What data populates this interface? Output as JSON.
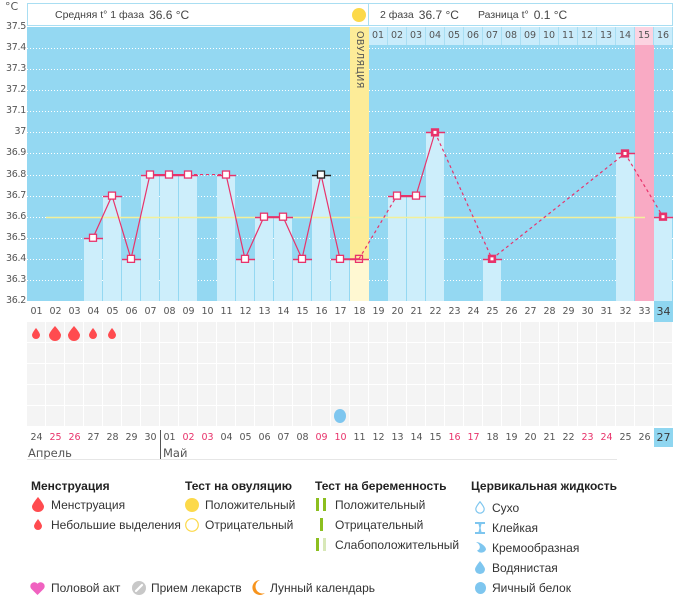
{
  "header": {
    "unit": "°C",
    "phase1_label": "Средняя t° 1 фаза",
    "phase1_value": "36.6 °C",
    "phase2_label": "2 фаза",
    "phase2_value": "36.7 °C",
    "diff_label": "Разница t°",
    "diff_value": "0.1 °C"
  },
  "chart_data": {
    "type": "line",
    "title": "",
    "xlabel": "",
    "ylabel": "°C",
    "ylim": [
      36.2,
      37.5
    ],
    "yticks": [
      "37.5",
      "37.4",
      "37.3",
      "37.2",
      "37.1",
      "37",
      "36.9",
      "36.8",
      "36.7",
      "36.6",
      "36.5",
      "36.4",
      "36.3",
      "36.2"
    ],
    "grid": true,
    "days": [
      "01",
      "02",
      "03",
      "04",
      "05",
      "06",
      "07",
      "08",
      "09",
      "10",
      "11",
      "12",
      "13",
      "14",
      "15",
      "16",
      "17",
      "18",
      "19",
      "20",
      "21",
      "22",
      "23",
      "24",
      "25",
      "26",
      "27",
      "28",
      "29",
      "30",
      "31",
      "32",
      "33",
      "34"
    ],
    "temperatures": [
      null,
      null,
      null,
      36.5,
      36.7,
      36.4,
      36.8,
      36.8,
      36.8,
      null,
      36.8,
      36.4,
      36.6,
      36.6,
      36.4,
      36.8,
      36.4,
      36.4,
      null,
      36.7,
      36.7,
      37.0,
      null,
      null,
      36.4,
      null,
      null,
      null,
      null,
      null,
      null,
      36.9,
      null,
      36.6
    ],
    "average_temperature": 36.6,
    "ovulation_day": 18,
    "ovulation_label": "ОВУЛЯЦИЯ",
    "selected_day": 16,
    "predicted_period_day": 33,
    "today_day": 34,
    "phase2_days": [
      "01",
      "02",
      "03",
      "04",
      "05",
      "06",
      "07",
      "08",
      "09",
      "10",
      "11",
      "12",
      "13",
      "14",
      "15",
      "16"
    ],
    "marker_variants": {
      "18": "hollow",
      "22": "filled",
      "25": "filled",
      "32": "filled",
      "34": "filled"
    }
  },
  "calendar": {
    "dates": [
      {
        "label": "24",
        "weekend": false
      },
      {
        "label": "25",
        "weekend": true
      },
      {
        "label": "26",
        "weekend": true
      },
      {
        "label": "27",
        "weekend": false
      },
      {
        "label": "28",
        "weekend": false
      },
      {
        "label": "29",
        "weekend": false
      },
      {
        "label": "30",
        "weekend": false
      },
      {
        "label": "01",
        "weekend": false
      },
      {
        "label": "02",
        "weekend": true
      },
      {
        "label": "03",
        "weekend": true
      },
      {
        "label": "04",
        "weekend": false
      },
      {
        "label": "05",
        "weekend": false
      },
      {
        "label": "06",
        "weekend": false
      },
      {
        "label": "07",
        "weekend": false
      },
      {
        "label": "08",
        "weekend": false
      },
      {
        "label": "09",
        "weekend": true
      },
      {
        "label": "10",
        "weekend": true
      },
      {
        "label": "11",
        "weekend": false
      },
      {
        "label": "12",
        "weekend": false
      },
      {
        "label": "13",
        "weekend": false
      },
      {
        "label": "14",
        "weekend": false
      },
      {
        "label": "15",
        "weekend": false
      },
      {
        "label": "16",
        "weekend": true
      },
      {
        "label": "17",
        "weekend": true
      },
      {
        "label": "18",
        "weekend": false
      },
      {
        "label": "19",
        "weekend": false
      },
      {
        "label": "20",
        "weekend": false
      },
      {
        "label": "21",
        "weekend": false
      },
      {
        "label": "22",
        "weekend": false
      },
      {
        "label": "23",
        "weekend": true
      },
      {
        "label": "24",
        "weekend": true
      },
      {
        "label": "25",
        "weekend": false
      },
      {
        "label": "26",
        "weekend": false
      },
      {
        "label": "27",
        "weekend": false
      }
    ],
    "months": [
      {
        "label": "Апрель",
        "start_day": 1
      },
      {
        "label": "Май",
        "start_day": 8
      }
    ],
    "symptom_rows": 5,
    "menstruation": [
      {
        "day": 1,
        "type": "spotting"
      },
      {
        "day": 2,
        "type": "menstruation"
      },
      {
        "day": 3,
        "type": "menstruation"
      },
      {
        "day": 4,
        "type": "spotting"
      },
      {
        "day": 5,
        "type": "spotting"
      }
    ],
    "cervical_fluid": [
      {
        "day": 17,
        "type": "egg-white"
      }
    ]
  },
  "legend": {
    "menstruation": {
      "title": "Менструация",
      "items": [
        {
          "icon": "drop-large-icon",
          "label": "Менструация"
        },
        {
          "icon": "drop-small-icon",
          "label": "Небольшие выделения"
        }
      ]
    },
    "ovulation_test": {
      "title": "Тест на овуляцию",
      "items": [
        {
          "icon": "filled-circle-icon",
          "label": "Положительный"
        },
        {
          "icon": "outline-circle-icon",
          "label": "Отрицательный"
        }
      ]
    },
    "pregnancy_test": {
      "title": "Тест на беременность",
      "items": [
        {
          "icon": "two-bars-icon",
          "label": "Положительный"
        },
        {
          "icon": "one-bar-icon",
          "label": "Отрицательный"
        },
        {
          "icon": "faint-bars-icon",
          "label": "Слабоположительный"
        }
      ]
    },
    "cervical_fluid": {
      "title": "Цервикальная жидкость",
      "items": [
        {
          "icon": "drop-outline-icon",
          "label": "Сухо"
        },
        {
          "icon": "hourglass-icon",
          "label": "Клейкая"
        },
        {
          "icon": "cream-drop-icon",
          "label": "Кремообразная"
        },
        {
          "icon": "water-drop-icon",
          "label": "Водянистая"
        },
        {
          "icon": "egg-white-icon",
          "label": "Яичный белок"
        }
      ]
    },
    "other": [
      {
        "icon": "heart-icon",
        "label": "Половой акт"
      },
      {
        "icon": "pill-icon",
        "label": "Прием лекарств"
      },
      {
        "icon": "moon-icon",
        "label": "Лунный календарь"
      }
    ]
  },
  "colors": {
    "chart_bg": "#94d8f2",
    "bar": "#cdeefb",
    "line": "#e8336b",
    "selected": "#222222",
    "average": "#f3f09a",
    "ovulation": "#fdec98",
    "ovulation_light": "#fff8d2",
    "period": "#f9aac4",
    "today": "#8fd6f0",
    "weekend_text": "#e8336b",
    "menstruation": "#ff4b4f",
    "cervical": "#7ec6ef",
    "ovulation_test": "#fcd94a",
    "pregnancy_test": "#8cbf1f",
    "pregnancy_test_faint": "#d8e8b8",
    "heart": "#f062c0",
    "pill": "#c8c8c8",
    "moon": "#f7941d"
  }
}
